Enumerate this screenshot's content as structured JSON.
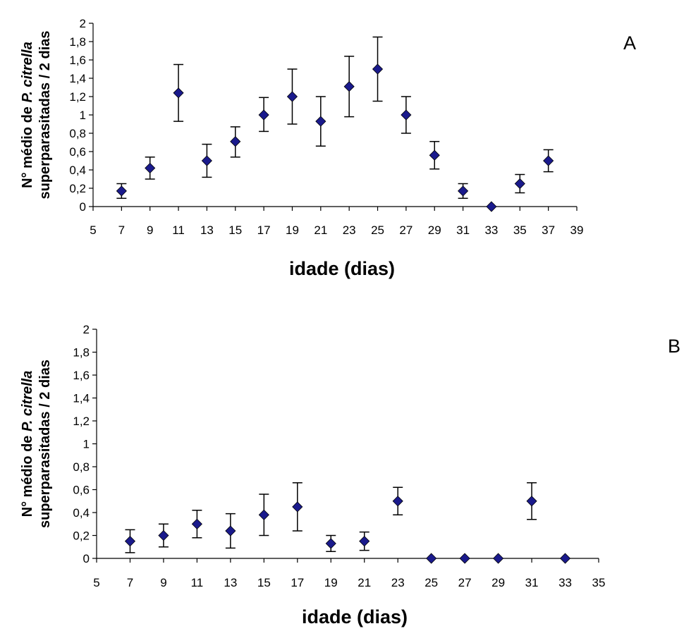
{
  "chart_data": [
    {
      "type": "scatter",
      "panel_label": "A",
      "xlabel": "idade (dias)",
      "ylabel_line1": "N° médio de P. citrella",
      "ylabel_line2": "superparasitadas / 2 dias",
      "ylabel_italic": "P. citrella",
      "xlim": [
        5,
        39
      ],
      "ylim": [
        0,
        2
      ],
      "x_ticks": [
        5,
        7,
        9,
        11,
        13,
        15,
        17,
        19,
        21,
        23,
        25,
        27,
        29,
        31,
        33,
        35,
        37,
        39
      ],
      "y_ticks": [
        0,
        0.2,
        0.4,
        0.6,
        0.8,
        1,
        1.2,
        1.4,
        1.6,
        1.8,
        2
      ],
      "y_tick_labels": [
        "0",
        "0,2",
        "0,4",
        "0,6",
        "0,8",
        "1",
        "1,2",
        "1,4",
        "1,6",
        "1,8",
        "2"
      ],
      "grid": false,
      "marker": "diamond",
      "marker_color": "#1a1a8c",
      "points": [
        {
          "x": 7,
          "y": 0.17,
          "err_low": 0.08,
          "err_high": 0.08
        },
        {
          "x": 9,
          "y": 0.42,
          "err_low": 0.12,
          "err_high": 0.12
        },
        {
          "x": 11,
          "y": 1.24,
          "err_low": 0.31,
          "err_high": 0.31
        },
        {
          "x": 13,
          "y": 0.5,
          "err_low": 0.18,
          "err_high": 0.18
        },
        {
          "x": 15,
          "y": 0.71,
          "err_low": 0.17,
          "err_high": 0.16
        },
        {
          "x": 17,
          "y": 1.0,
          "err_low": 0.18,
          "err_high": 0.19
        },
        {
          "x": 19,
          "y": 1.2,
          "err_low": 0.3,
          "err_high": 0.3
        },
        {
          "x": 21,
          "y": 0.93,
          "err_low": 0.27,
          "err_high": 0.27
        },
        {
          "x": 23,
          "y": 1.31,
          "err_low": 0.33,
          "err_high": 0.33
        },
        {
          "x": 25,
          "y": 1.5,
          "err_low": 0.35,
          "err_high": 0.35
        },
        {
          "x": 27,
          "y": 1.0,
          "err_low": 0.2,
          "err_high": 0.2
        },
        {
          "x": 29,
          "y": 0.56,
          "err_low": 0.15,
          "err_high": 0.15
        },
        {
          "x": 31,
          "y": 0.17,
          "err_low": 0.08,
          "err_high": 0.08
        },
        {
          "x": 33,
          "y": 0.0,
          "err_low": 0,
          "err_high": 0
        },
        {
          "x": 35,
          "y": 0.25,
          "err_low": 0.1,
          "err_high": 0.1
        },
        {
          "x": 37,
          "y": 0.5,
          "err_low": 0.12,
          "err_high": 0.12
        }
      ]
    },
    {
      "type": "scatter",
      "panel_label": "B",
      "xlabel": "idade (dias)",
      "ylabel_line1": "N° médio de P. citrella",
      "ylabel_line2": "superparasitadas / 2 dias",
      "ylabel_italic": "P. citrella",
      "xlim": [
        5,
        35
      ],
      "ylim": [
        0,
        2
      ],
      "x_ticks": [
        5,
        7,
        9,
        11,
        13,
        15,
        17,
        19,
        21,
        23,
        25,
        27,
        29,
        31,
        33,
        35
      ],
      "y_ticks": [
        0,
        0.2,
        0.4,
        0.6,
        0.8,
        1,
        1.2,
        1.4,
        1.6,
        1.8,
        2
      ],
      "y_tick_labels": [
        "0",
        "0,2",
        "0,4",
        "0,6",
        "0,8",
        "1",
        "1,2",
        "1,4",
        "1,6",
        "1,8",
        "2"
      ],
      "grid": false,
      "marker": "diamond",
      "marker_color": "#1a1a8c",
      "points": [
        {
          "x": 7,
          "y": 0.15,
          "err_low": 0.1,
          "err_high": 0.1
        },
        {
          "x": 9,
          "y": 0.2,
          "err_low": 0.1,
          "err_high": 0.1
        },
        {
          "x": 11,
          "y": 0.3,
          "err_low": 0.12,
          "err_high": 0.12
        },
        {
          "x": 13,
          "y": 0.24,
          "err_low": 0.15,
          "err_high": 0.15
        },
        {
          "x": 15,
          "y": 0.38,
          "err_low": 0.18,
          "err_high": 0.18
        },
        {
          "x": 17,
          "y": 0.45,
          "err_low": 0.21,
          "err_high": 0.21
        },
        {
          "x": 19,
          "y": 0.13,
          "err_low": 0.07,
          "err_high": 0.07
        },
        {
          "x": 21,
          "y": 0.15,
          "err_low": 0.08,
          "err_high": 0.08
        },
        {
          "x": 23,
          "y": 0.5,
          "err_low": 0.12,
          "err_high": 0.12
        },
        {
          "x": 25,
          "y": 0.0,
          "err_low": 0,
          "err_high": 0
        },
        {
          "x": 27,
          "y": 0.0,
          "err_low": 0,
          "err_high": 0
        },
        {
          "x": 29,
          "y": 0.0,
          "err_low": 0,
          "err_high": 0
        },
        {
          "x": 31,
          "y": 0.5,
          "err_low": 0.16,
          "err_high": 0.16
        },
        {
          "x": 33,
          "y": 0.0,
          "err_low": 0,
          "err_high": 0
        }
      ]
    }
  ]
}
